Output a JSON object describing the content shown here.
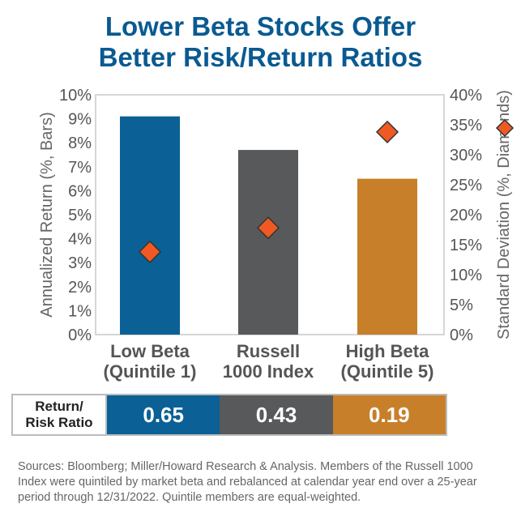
{
  "title_line1": "Lower Beta Stocks Offer",
  "title_line2": "Better Risk/Return Ratios",
  "chart_data": {
    "type": "bar",
    "categories": [
      [
        "Low Beta",
        "(Quintile 1)"
      ],
      [
        "Russell",
        "1000 Index"
      ],
      [
        "High Beta",
        "(Quintile 5)"
      ]
    ],
    "series": [
      {
        "name": "Annualized Return (%, Bars)",
        "axis": "left",
        "values": [
          9.1,
          7.7,
          6.5
        ]
      },
      {
        "name": "Standard Deviation (%, Diamonds)",
        "axis": "right",
        "marker": "diamond",
        "values": [
          13.8,
          17.8,
          33.8
        ]
      }
    ],
    "y_left": {
      "label": "Annualized Return (%, Bars)",
      "lim": [
        0,
        10
      ],
      "ticks": [
        "0%",
        "1%",
        "2%",
        "3%",
        "4%",
        "5%",
        "6%",
        "7%",
        "8%",
        "9%",
        "10%"
      ]
    },
    "y_right": {
      "label": "Standard Deviation (%, Diamonds)",
      "lim": [
        0,
        40
      ],
      "ticks": [
        "0%",
        "5%",
        "10%",
        "15%",
        "20%",
        "25%",
        "30%",
        "35%",
        "40%"
      ]
    },
    "legend_diamond": "right-axis"
  },
  "ratio": {
    "label_line1": "Return/",
    "label_line2": "Risk Ratio",
    "values": [
      "0.65",
      "0.43",
      "0.19"
    ]
  },
  "colors": {
    "title": "#0a5a91",
    "bar_low": "#0b6196",
    "bar_russell": "#58595b",
    "bar_high": "#c87f2a",
    "diamond": "#f05a22",
    "text": "#555555"
  },
  "sources": "Sources: Bloomberg; Miller/Howard Research & Analysis. Members of the Russell 1000 Index were quintiled by market beta and rebalanced at calendar year end over a 25-year period through 12/31/2022. Quintile members are equal-weighted."
}
